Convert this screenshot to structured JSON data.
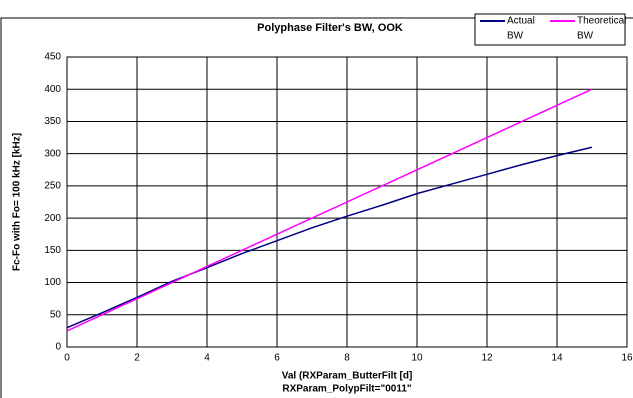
{
  "chart_data": {
    "type": "line",
    "title": "Polyphase Filter's BW, OOK",
    "ylabel": "Fc-Fo with Fo= 100 kHz [kHz]",
    "xlabel": [
      "Val (RXParam_ButterFilt [d]",
      "RXParam_PolypFilt=\"0011\""
    ],
    "x": [
      0,
      1,
      2,
      3,
      4,
      5,
      6,
      7,
      8,
      9,
      10,
      11,
      12,
      13,
      14,
      15
    ],
    "series": [
      {
        "name": [
          "Actual",
          "BW"
        ],
        "color": "#000080",
        "values": [
          30,
          53,
          77,
          102,
          123,
          145,
          165,
          185,
          203,
          220,
          238,
          253,
          268,
          283,
          297,
          310
        ]
      },
      {
        "name": [
          "Theoretical",
          "BW"
        ],
        "color": "#ff00ff",
        "values": [
          25,
          50,
          75,
          100,
          125,
          150,
          175,
          200,
          225,
          250,
          275,
          300,
          325,
          350,
          375,
          400
        ]
      }
    ],
    "xlim": [
      0,
      16
    ],
    "xticks": [
      0,
      2,
      4,
      6,
      8,
      10,
      12,
      14,
      16
    ],
    "ylim": [
      0,
      450
    ],
    "yticks": [
      0,
      50,
      100,
      150,
      200,
      250,
      300,
      350,
      400,
      450
    ],
    "grid": true
  }
}
